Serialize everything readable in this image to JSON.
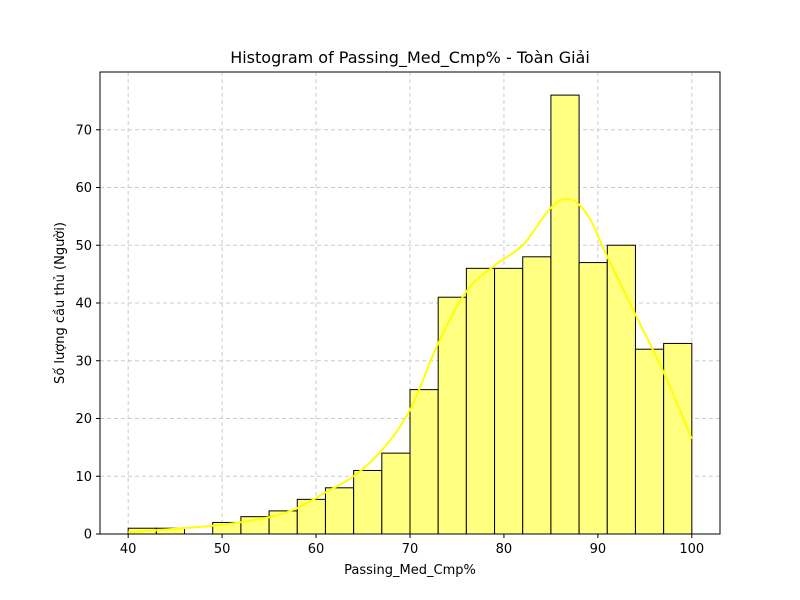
{
  "chart_data": {
    "type": "bar",
    "subtype": "histogram",
    "title": "Histogram of Passing_Med_Cmp% - Toàn Giải",
    "xlabel": "Passing_Med_Cmp%",
    "ylabel": "Số lượng cầu thủ (Người)",
    "xlim": [
      37,
      103
    ],
    "ylim": [
      0,
      80
    ],
    "xticks": [
      40,
      50,
      60,
      70,
      80,
      90,
      100
    ],
    "yticks": [
      0,
      10,
      20,
      30,
      40,
      50,
      60,
      70
    ],
    "grid": true,
    "bin_edges": [
      40,
      43,
      46,
      49,
      52,
      55,
      58,
      61,
      64,
      67,
      70,
      73,
      76,
      79,
      82,
      85,
      88,
      91,
      94,
      97,
      100
    ],
    "values": [
      1,
      1,
      0,
      2,
      3,
      4,
      6,
      8,
      11,
      14,
      25,
      41,
      46,
      46,
      48,
      76,
      47,
      50,
      32,
      33
    ],
    "kde": {
      "x": [
        40,
        45,
        50,
        55,
        58,
        61,
        64,
        67,
        70,
        73,
        76,
        79,
        82,
        85,
        87,
        89,
        91,
        94,
        97,
        100
      ],
      "y": [
        0.3,
        0.9,
        1.6,
        2.9,
        4.5,
        7.2,
        10,
        14.5,
        21.5,
        33,
        42,
        46.5,
        50,
        56.5,
        58,
        55,
        48,
        38,
        28,
        16.5
      ]
    },
    "colors": {
      "bar_fill": "#ffff80",
      "bar_edge": "#000000",
      "kde_line": "#ffff00",
      "grid": "#cccccc"
    }
  }
}
